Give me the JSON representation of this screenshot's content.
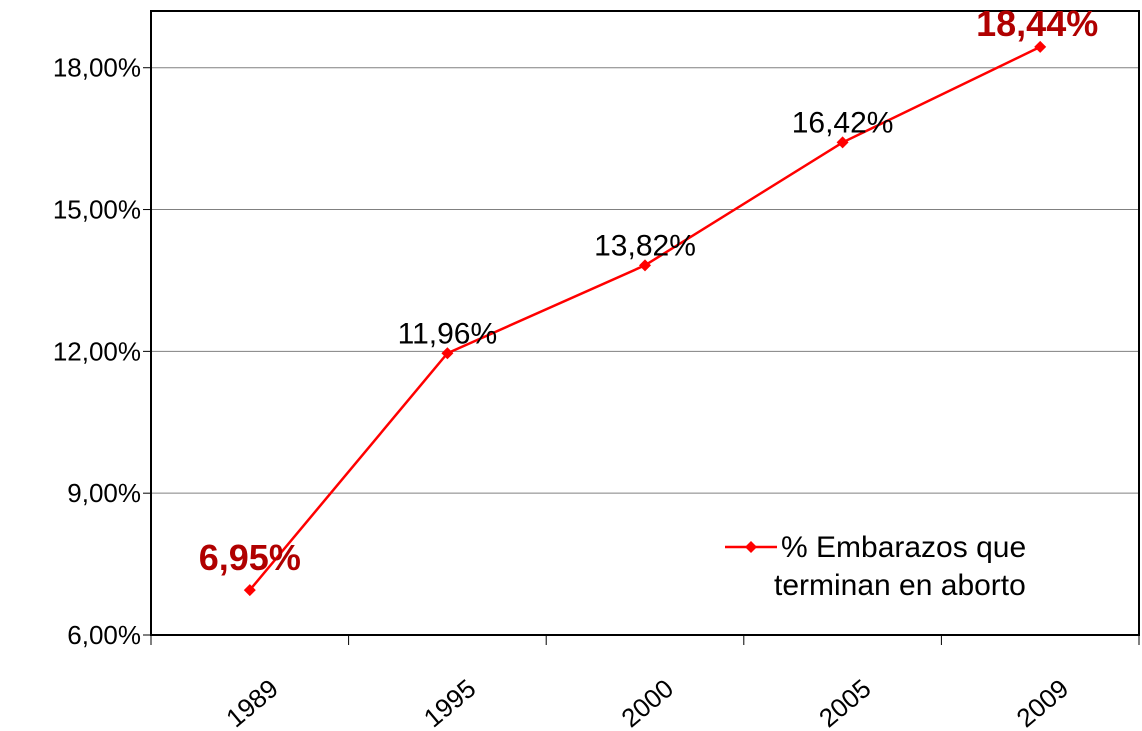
{
  "chart_data": {
    "type": "line",
    "categories": [
      "1989",
      "1995",
      "2000",
      "2005",
      "2009"
    ],
    "series": [
      {
        "name": "% Embarazos que terminan en aborto",
        "values": [
          6.95,
          11.96,
          13.82,
          16.42,
          18.44
        ],
        "color": "#ff0000"
      }
    ],
    "data_labels": [
      "6,95%",
      "11,96%",
      "13,82%",
      "16,42%",
      "18,44%"
    ],
    "highlighted_labels": [
      0,
      4
    ],
    "highlight_color": "#b00000",
    "y_ticks": [
      6,
      9,
      12,
      15,
      18
    ],
    "y_tick_labels": [
      "6,00%",
      "9,00%",
      "12,00%",
      "15,00%",
      "18,00%"
    ],
    "ylim": [
      6,
      19.2
    ],
    "grid": true,
    "legend": {
      "lines": [
        "% Embarazos que",
        "terminan en aborto"
      ],
      "placement": "bottom-right"
    },
    "title": "",
    "xlabel": "",
    "ylabel": ""
  }
}
